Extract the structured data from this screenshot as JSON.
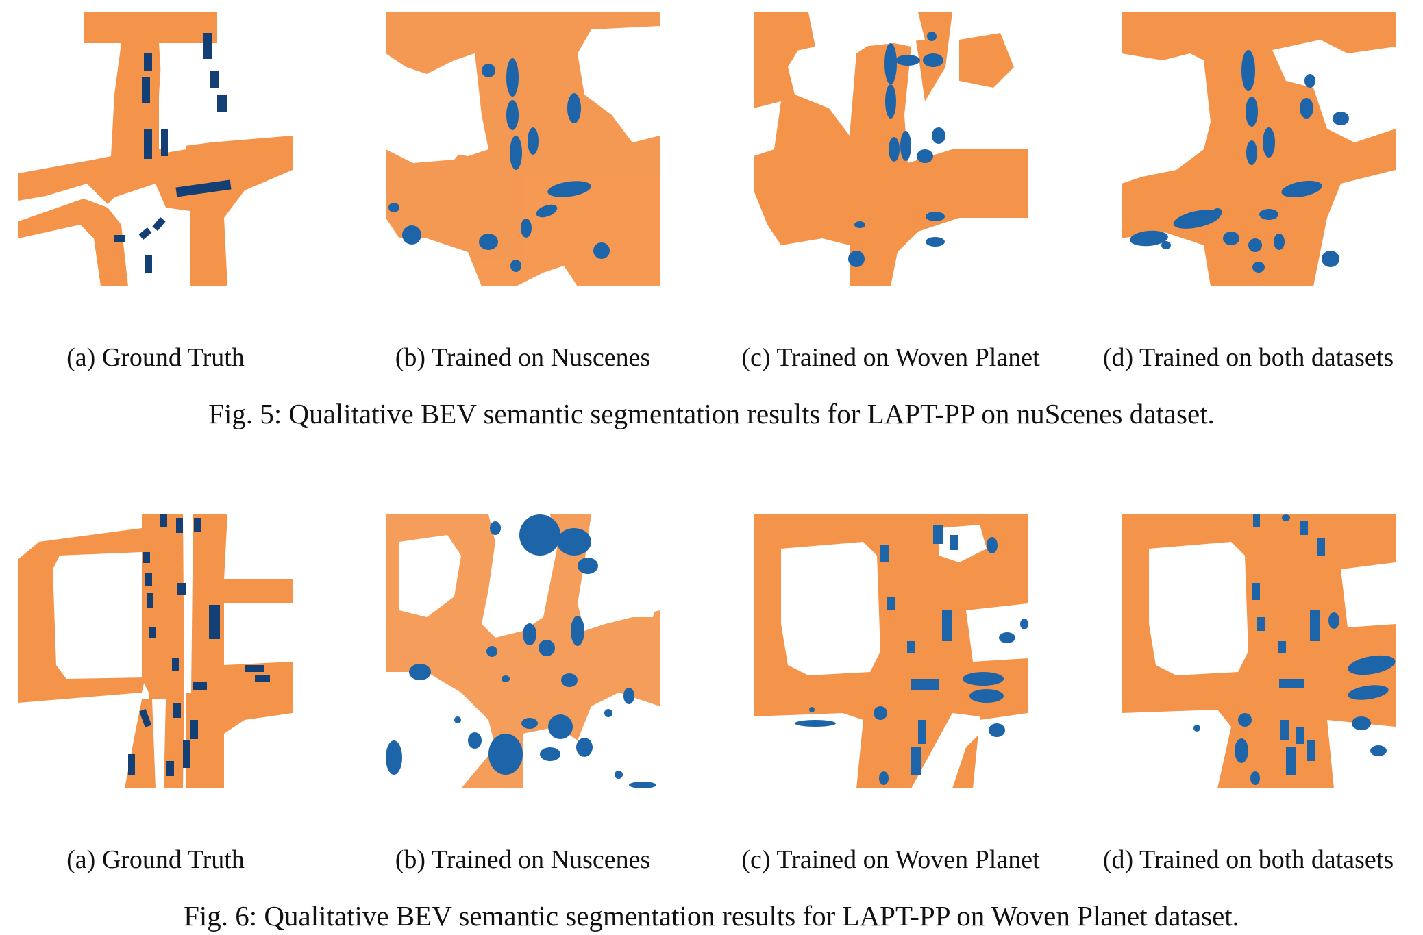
{
  "colors": {
    "road": "#f4944a",
    "vehicle_gt": "#143f74",
    "vehicle_pred": "#1e64a8",
    "background": "#ffffff"
  },
  "figures": [
    {
      "caption": "Fig. 5: Qualitative BEV semantic segmentation results for LAPT-PP on nuScenes dataset.",
      "panels": [
        {
          "label": "(a) Ground Truth"
        },
        {
          "label": "(b) Trained on Nuscenes"
        },
        {
          "label": "(c) Trained on Woven Planet"
        },
        {
          "label": "(d) Trained on both datasets"
        }
      ]
    },
    {
      "caption": "Fig. 6: Qualitative BEV semantic segmentation results for LAPT-PP on Woven Planet dataset.",
      "panels": [
        {
          "label": "(a) Ground Truth"
        },
        {
          "label": "(b) Trained on Nuscenes"
        },
        {
          "label": "(c) Trained on Woven Planet"
        },
        {
          "label": "(d) Trained on both datasets"
        }
      ]
    }
  ]
}
